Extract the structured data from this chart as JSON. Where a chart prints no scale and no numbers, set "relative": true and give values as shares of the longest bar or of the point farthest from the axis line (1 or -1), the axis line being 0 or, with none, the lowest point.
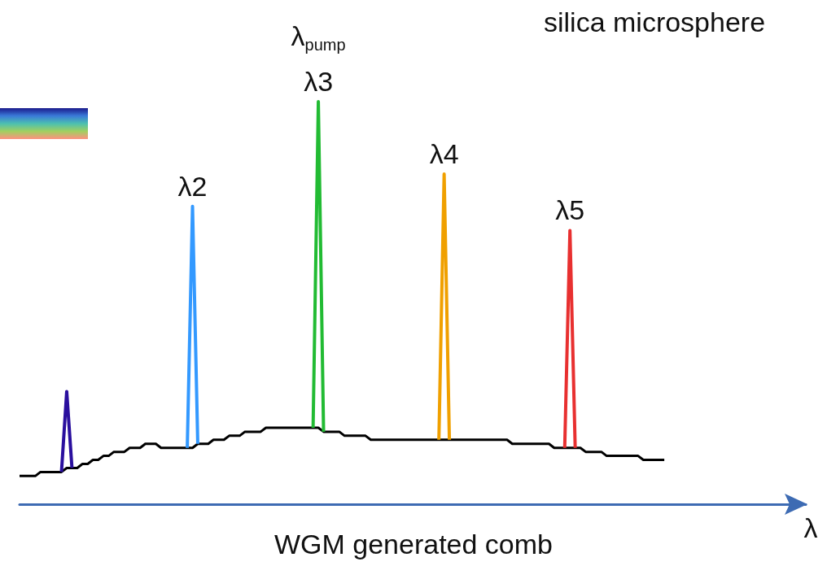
{
  "chart_data": {
    "type": "line",
    "relative": true,
    "xlabel": "λ",
    "annotations": [
      "λ$_{pump}$",
      "silica microsphere",
      "WGM generated comb"
    ],
    "categories": [
      null,
      null,
      null,
      null,
      null,
      null,
      null,
      null,
      null,
      null,
      null,
      null,
      null,
      null,
      null,
      null,
      null,
      null,
      null,
      null,
      null,
      null,
      null,
      null,
      null,
      null,
      null,
      null,
      null,
      null,
      null,
      null,
      null,
      null,
      null,
      null,
      null,
      null,
      null,
      null,
      null,
      null,
      null,
      null,
      null,
      null,
      null,
      null,
      null,
      null,
      null,
      null,
      null,
      null,
      null,
      null,
      null,
      null,
      null,
      null,
      null,
      null,
      null,
      null,
      null,
      null,
      null,
      null,
      null,
      null,
      null,
      null,
      null,
      null,
      null,
      null,
      null,
      null,
      null,
      null,
      null,
      null,
      null,
      null,
      null,
      null,
      null,
      null,
      null,
      null,
      null,
      null,
      null,
      null,
      null,
      null,
      null,
      null,
      null,
      null,
      null,
      null,
      null,
      null,
      null,
      null,
      null,
      null,
      null,
      null,
      null,
      null,
      null,
      null,
      null,
      null,
      null,
      null,
      null,
      null,
      null,
      null,
      null,
      null,
      null,
      null,
      null,
      null,
      null,
      null,
      null,
      null,
      null,
      null,
      null,
      null,
      null,
      null,
      null,
      null,
      null,
      null,
      null,
      null,
      null,
      null,
      null,
      null,
      null,
      null,
      null
    ],
    "series": [
      {
        "color": "#000000",
        "values": [
          0.07,
          0.07,
          0.07,
          0.07,
          0.08,
          0.08,
          0.08,
          0.08,
          0.08,
          0.09,
          0.09,
          0.09,
          0.1,
          0.1,
          0.11,
          0.11,
          0.12,
          0.12,
          0.13,
          0.13,
          0.13,
          0.14,
          0.14,
          0.14,
          0.15,
          0.15,
          0.15,
          0.14,
          0.14,
          0.14,
          0.14,
          0.14,
          0.14,
          0.14,
          0.15,
          0.15,
          0.15,
          0.16,
          0.16,
          0.16,
          0.17,
          0.17,
          0.17,
          0.18,
          0.18,
          0.18,
          0.18,
          0.19,
          0.19,
          0.19,
          0.19,
          0.19,
          0.19,
          0.19,
          0.19,
          0.19,
          0.19,
          0.19,
          0.18,
          0.18,
          0.18,
          0.18,
          0.17,
          0.17,
          0.17,
          0.17,
          0.17,
          0.16,
          0.16,
          0.16,
          0.16,
          0.16,
          0.16,
          0.16,
          0.16,
          0.16,
          0.16,
          0.16,
          0.16,
          0.16,
          0.16,
          0.16,
          0.16,
          0.16,
          0.16,
          0.16,
          0.16,
          0.16,
          0.16,
          0.16,
          0.16,
          0.16,
          0.16,
          0.16,
          0.15,
          0.15,
          0.15,
          0.15,
          0.15,
          0.15,
          0.15,
          0.15,
          0.14,
          0.14,
          0.14,
          0.14,
          0.14,
          0.14,
          0.13,
          0.13,
          0.13,
          0.13,
          0.12,
          0.12,
          0.12,
          0.12,
          0.12,
          0.12,
          0.12,
          0.11,
          0.11,
          0.11,
          0.11,
          0.11,
          null,
          null,
          null,
          null,
          null,
          null,
          null,
          null,
          null,
          null,
          null,
          null,
          null,
          null,
          null,
          null,
          null,
          null,
          null,
          null,
          null,
          null,
          null,
          null,
          null,
          null,
          null
        ]
      },
      {
        "color": "#2a0f9e",
        "values": [
          null,
          null,
          null,
          null,
          null,
          null,
          null,
          null,
          0.08,
          0.28,
          0.09,
          null,
          null,
          null,
          null,
          null,
          null,
          null,
          null,
          null,
          null,
          null,
          null,
          null,
          null,
          null,
          null,
          null,
          null,
          null,
          null,
          null,
          null,
          null,
          null,
          null,
          null,
          null,
          null,
          null,
          null,
          null,
          null,
          null,
          null,
          null,
          null,
          null,
          null,
          null,
          null,
          null,
          null,
          null,
          null,
          null,
          null,
          null,
          null,
          null,
          null,
          null,
          null,
          null,
          null,
          null,
          null,
          null,
          null,
          null,
          null,
          null,
          null,
          null,
          null,
          null,
          null,
          null,
          null,
          null,
          null,
          null,
          null,
          null,
          null,
          null,
          null,
          null,
          null,
          null,
          null,
          null,
          null,
          null,
          null,
          null,
          null,
          null,
          null,
          null,
          null,
          null,
          null,
          null,
          null,
          null,
          null,
          null,
          null,
          null,
          null,
          null,
          null,
          null,
          null,
          null,
          null,
          null,
          null,
          null,
          null,
          null,
          null,
          null,
          null,
          null,
          null,
          null,
          null,
          null,
          null,
          null,
          null,
          null,
          null,
          null,
          null,
          null,
          null,
          null,
          null,
          null,
          null,
          null,
          null,
          null,
          null,
          null,
          null,
          null,
          null
        ]
      },
      {
        "name": "λ2",
        "color": "#3399ff",
        "values": [
          null,
          null,
          null,
          null,
          null,
          null,
          null,
          null,
          null,
          null,
          null,
          null,
          null,
          null,
          null,
          null,
          null,
          null,
          null,
          null,
          null,
          null,
          null,
          null,
          null,
          null,
          null,
          null,
          null,
          null,
          null,
          null,
          0.14,
          0.74,
          0.15,
          null,
          null,
          null,
          null,
          null,
          null,
          null,
          null,
          null,
          null,
          null,
          null,
          null,
          null,
          null,
          null,
          null,
          null,
          null,
          null,
          null,
          null,
          null,
          null,
          null,
          null,
          null,
          null,
          null,
          null,
          null,
          null,
          null,
          null,
          null,
          null,
          null,
          null,
          null,
          null,
          null,
          null,
          null,
          null,
          null,
          null,
          null,
          null,
          null,
          null,
          null,
          null,
          null,
          null,
          null,
          null,
          null,
          null,
          null,
          null,
          null,
          null,
          null,
          null,
          null,
          null,
          null,
          null,
          null,
          null,
          null,
          null,
          null,
          null,
          null,
          null,
          null,
          null,
          null,
          null,
          null,
          null,
          null,
          null,
          null,
          null,
          null,
          null,
          null,
          null,
          null,
          null,
          null,
          null,
          null,
          null,
          null,
          null,
          null,
          null,
          null,
          null,
          null,
          null,
          null,
          null,
          null,
          null,
          null,
          null,
          null,
          null,
          null,
          null,
          null,
          null
        ]
      },
      {
        "name": "λ3",
        "color": "#22bb33",
        "values": [
          null,
          null,
          null,
          null,
          null,
          null,
          null,
          null,
          null,
          null,
          null,
          null,
          null,
          null,
          null,
          null,
          null,
          null,
          null,
          null,
          null,
          null,
          null,
          null,
          null,
          null,
          null,
          null,
          null,
          null,
          null,
          null,
          null,
          null,
          null,
          null,
          null,
          null,
          null,
          null,
          null,
          null,
          null,
          null,
          null,
          null,
          null,
          null,
          null,
          null,
          null,
          null,
          null,
          null,
          null,
          null,
          0.19,
          1,
          0.18,
          null,
          null,
          null,
          null,
          null,
          null,
          null,
          null,
          null,
          null,
          null,
          null,
          null,
          null,
          null,
          null,
          null,
          null,
          null,
          null,
          null,
          null,
          null,
          null,
          null,
          null,
          null,
          null,
          null,
          null,
          null,
          null,
          null,
          null,
          null,
          null,
          null,
          null,
          null,
          null,
          null,
          null,
          null,
          null,
          null,
          null,
          null,
          null,
          null,
          null,
          null,
          null,
          null,
          null,
          null,
          null,
          null,
          null,
          null,
          null,
          null,
          null,
          null,
          null,
          null,
          null,
          null,
          null,
          null,
          null,
          null,
          null,
          null,
          null,
          null,
          null,
          null,
          null,
          null,
          null,
          null,
          null,
          null,
          null,
          null,
          null,
          null,
          null,
          null,
          null,
          null,
          null
        ]
      },
      {
        "name": "λ4",
        "color": "#f0a000",
        "values": [
          null,
          null,
          null,
          null,
          null,
          null,
          null,
          null,
          null,
          null,
          null,
          null,
          null,
          null,
          null,
          null,
          null,
          null,
          null,
          null,
          null,
          null,
          null,
          null,
          null,
          null,
          null,
          null,
          null,
          null,
          null,
          null,
          null,
          null,
          null,
          null,
          null,
          null,
          null,
          null,
          null,
          null,
          null,
          null,
          null,
          null,
          null,
          null,
          null,
          null,
          null,
          null,
          null,
          null,
          null,
          null,
          null,
          null,
          null,
          null,
          null,
          null,
          null,
          null,
          null,
          null,
          null,
          null,
          null,
          null,
          null,
          null,
          null,
          null,
          null,
          null,
          null,
          null,
          null,
          null,
          0.16,
          0.82,
          0.16,
          null,
          null,
          null,
          null,
          null,
          null,
          null,
          null,
          null,
          null,
          null,
          null,
          null,
          null,
          null,
          null,
          null,
          null,
          null,
          null,
          null,
          null,
          null,
          null,
          null,
          null,
          null,
          null,
          null,
          null,
          null,
          null,
          null,
          null,
          null,
          null,
          null,
          null,
          null,
          null,
          null,
          null,
          null,
          null,
          null,
          null,
          null,
          null,
          null,
          null,
          null,
          null,
          null,
          null,
          null,
          null,
          null,
          null,
          null,
          null,
          null,
          null,
          null,
          null,
          null,
          null,
          null,
          null
        ]
      },
      {
        "name": "λ5",
        "color": "#e83030",
        "values": [
          null,
          null,
          null,
          null,
          null,
          null,
          null,
          null,
          null,
          null,
          null,
          null,
          null,
          null,
          null,
          null,
          null,
          null,
          null,
          null,
          null,
          null,
          null,
          null,
          null,
          null,
          null,
          null,
          null,
          null,
          null,
          null,
          null,
          null,
          null,
          null,
          null,
          null,
          null,
          null,
          null,
          null,
          null,
          null,
          null,
          null,
          null,
          null,
          null,
          null,
          null,
          null,
          null,
          null,
          null,
          null,
          null,
          null,
          null,
          null,
          null,
          null,
          null,
          null,
          null,
          null,
          null,
          null,
          null,
          null,
          null,
          null,
          null,
          null,
          null,
          null,
          null,
          null,
          null,
          null,
          null,
          null,
          null,
          null,
          null,
          null,
          null,
          null,
          null,
          null,
          null,
          null,
          null,
          null,
          null,
          null,
          null,
          null,
          null,
          null,
          null,
          null,
          null,
          null,
          0.14,
          0.68,
          0.14,
          null,
          null,
          null,
          null,
          null,
          null,
          null,
          null,
          null,
          null,
          null,
          null,
          null,
          null,
          null,
          null,
          null,
          null,
          null,
          null,
          null,
          null,
          null,
          null,
          null,
          null,
          null,
          null,
          null,
          null,
          null,
          null,
          null,
          null,
          null,
          null,
          null,
          null,
          null,
          null,
          null,
          null,
          null,
          null
        ]
      }
    ]
  }
}
